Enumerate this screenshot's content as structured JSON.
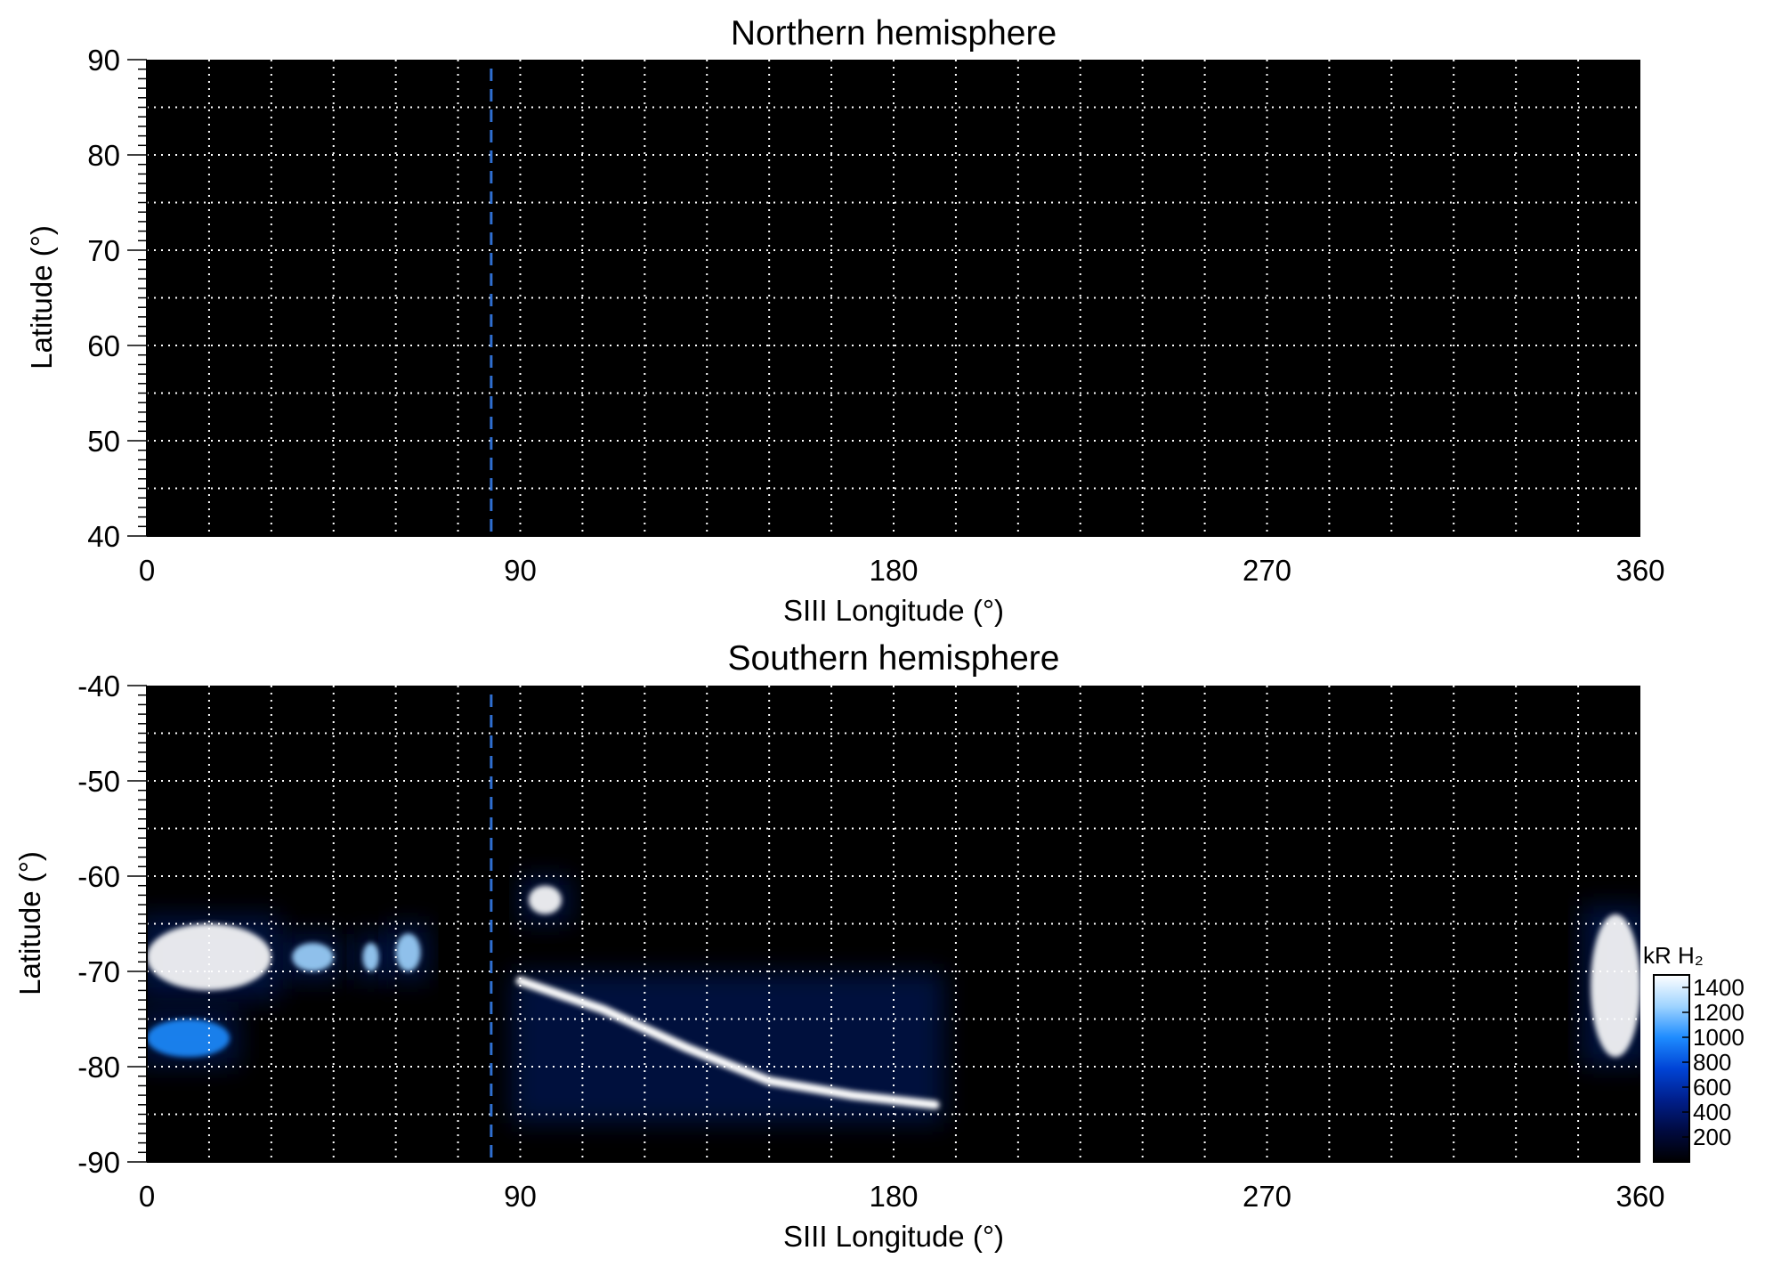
{
  "chart_data": [
    {
      "type": "heatmap",
      "title": "Northern hemisphere",
      "xlabel": "SIII Longitude (°)",
      "ylabel": "Latitude (°)",
      "xlim": [
        0,
        360
      ],
      "ylim": [
        40,
        90
      ],
      "xticks": [
        "0",
        "90",
        "180",
        "270",
        "360"
      ],
      "yticks": [
        "90",
        "80",
        "70",
        "60",
        "50",
        "40"
      ],
      "grid": true,
      "grid_x_step": 15,
      "grid_y_step": 5,
      "marker_longitude": 83,
      "emission_features": []
    },
    {
      "type": "heatmap",
      "title": "Southern hemisphere",
      "xlabel": "SIII Longitude (°)",
      "ylabel": "Latitude (°)",
      "xlim": [
        0,
        360
      ],
      "ylim": [
        -90,
        -40
      ],
      "xticks": [
        "0",
        "90",
        "180",
        "270",
        "360"
      ],
      "yticks": [
        "-40",
        "-50",
        "-60",
        "-70",
        "-80",
        "-90"
      ],
      "grid": true,
      "grid_x_step": 15,
      "grid_y_step": 5,
      "marker_longitude": 83,
      "emission_features": [
        {
          "lon": [
            0,
            30
          ],
          "lat": [
            -65,
            -72
          ],
          "intensity": 1400
        },
        {
          "lon": [
            35,
            45
          ],
          "lat": [
            -67,
            -70
          ],
          "intensity": 1300
        },
        {
          "lon": [
            52,
            56
          ],
          "lat": [
            -67,
            -70
          ],
          "intensity": 1200
        },
        {
          "lon": [
            60,
            66
          ],
          "lat": [
            -66,
            -70
          ],
          "intensity": 1200
        },
        {
          "lon": [
            92,
            100
          ],
          "lat": [
            -61,
            -64
          ],
          "intensity": 1400
        },
        {
          "lon": [
            90,
            190
          ],
          "lat": [
            -71,
            -85
          ],
          "intensity": 1400
        },
        {
          "lon": [
            348,
            360
          ],
          "lat": [
            -64,
            -79
          ],
          "intensity": 1400
        },
        {
          "lon": [
            0,
            20
          ],
          "lat": [
            -75,
            -79
          ],
          "intensity": 1000
        }
      ],
      "colorbar": {
        "label": "kR H₂",
        "ticks": [
          "1400",
          "1200",
          "1000",
          "800",
          "600",
          "400",
          "200"
        ],
        "range": [
          0,
          1500
        ],
        "colors": [
          "#000000",
          "#000a40",
          "#001f8c",
          "#0044d6",
          "#1e8cff",
          "#9fd4ff",
          "#ffffff"
        ]
      }
    }
  ]
}
